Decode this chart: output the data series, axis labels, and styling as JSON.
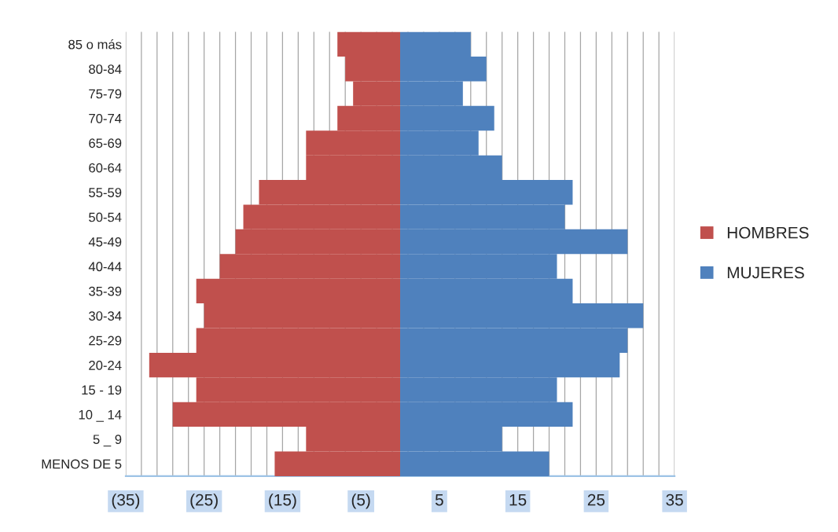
{
  "chart_data": {
    "type": "bar",
    "orientation": "horizontal",
    "categories": [
      "85 o más",
      "80-84",
      "75-79",
      "70-74",
      "65-69",
      "60-64",
      "55-59",
      "50-54",
      "45-49",
      "40-44",
      "35-39",
      "30-34",
      "25-29",
      "20-24",
      "15 - 19",
      "10 _ 14",
      "5 _ 9",
      "MENOS DE 5"
    ],
    "series": [
      {
        "name": "HOMBRES",
        "color": "#c0504d",
        "values": [
          -8,
          -7,
          -6,
          -8,
          -12,
          -12,
          -18,
          -20,
          -21,
          -23,
          -26,
          -25,
          -26,
          -32,
          -26,
          -29,
          -12,
          -16
        ]
      },
      {
        "name": "MUJERES",
        "color": "#4f81bd",
        "values": [
          9,
          11,
          8,
          12,
          10,
          13,
          22,
          21,
          29,
          20,
          22,
          31,
          29,
          28,
          20,
          22,
          13,
          19
        ]
      }
    ],
    "xlim": [
      -35,
      35
    ],
    "xticks": [
      {
        "value": -35,
        "label": "(35)"
      },
      {
        "value": -25,
        "label": "(25)"
      },
      {
        "value": -15,
        "label": "(15)"
      },
      {
        "value": -5,
        "label": "(5)"
      },
      5,
      15,
      25,
      35
    ],
    "grid": "x",
    "legend": "right",
    "stacked": true
  }
}
